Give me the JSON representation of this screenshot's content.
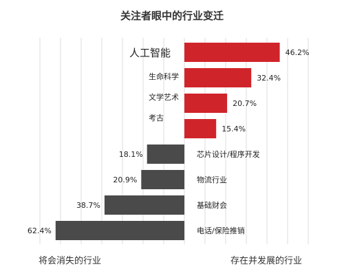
{
  "title": "关注者眼中的行业变迁",
  "bottom_labels": {
    "left": "将会消失的行业",
    "right": "存在并发展的行业"
  },
  "colors": {
    "grow": "#d0242b",
    "decline": "#4a4a4a",
    "grid": "#dddddd"
  },
  "chart_data": {
    "type": "bar",
    "orientation": "horizontal-diverging",
    "title": "关注者眼中的行业变迁",
    "groups": [
      {
        "name": "存在并发展的行业",
        "direction": "right",
        "categories": [
          "人工智能",
          "生命科学",
          "文学艺术",
          "考古"
        ],
        "values": [
          46.2,
          32.4,
          20.7,
          15.4
        ],
        "value_labels": [
          "46.2%",
          "32.4%",
          "20.7%",
          "15.4%"
        ]
      },
      {
        "name": "将会消失的行业",
        "direction": "left",
        "categories": [
          "芯片设计/程序开发",
          "物流行业",
          "基础财会",
          "电话/保险推销"
        ],
        "values": [
          18.1,
          20.9,
          38.7,
          62.4
        ],
        "value_labels": [
          "18.1%",
          "20.9%",
          "38.7%",
          "62.4%"
        ]
      }
    ],
    "unit": "%",
    "grid": true
  }
}
